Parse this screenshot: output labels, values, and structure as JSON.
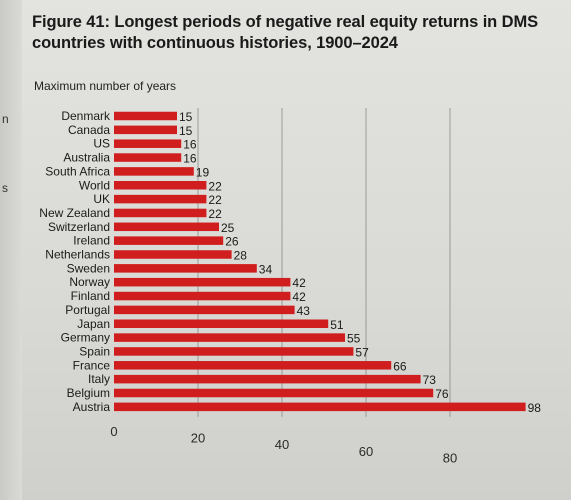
{
  "figure": {
    "title": "Figure 41: Longest periods of negative real equity returns in DMS countries with continuous histories, 1900–2024",
    "y_unit_label": "Maximum number of years",
    "margin_glyphs": [
      "n",
      "s"
    ]
  },
  "chart_data": {
    "type": "bar",
    "orientation": "horizontal",
    "title": "Figure 41: Longest periods of negative real equity returns in DMS countries with continuous histories, 1900–2024",
    "xlabel": "Maximum number of years",
    "ylabel": "",
    "categories": [
      "Denmark",
      "Canada",
      "US",
      "Australia",
      "South Africa",
      "World",
      "UK",
      "New Zealand",
      "Switzerland",
      "Ireland",
      "Netherlands",
      "Sweden",
      "Norway",
      "Finland",
      "Portugal",
      "Japan",
      "Germany",
      "Spain",
      "France",
      "Italy",
      "Belgium",
      "Austria"
    ],
    "values": [
      15,
      15,
      16,
      16,
      19,
      22,
      22,
      22,
      25,
      26,
      28,
      34,
      42,
      42,
      43,
      51,
      55,
      57,
      66,
      73,
      76,
      98
    ],
    "xlim": [
      0,
      100
    ],
    "xticks": [
      0,
      20,
      40,
      60,
      80
    ],
    "grid": "vertical",
    "bar_color": "#d01d1d"
  }
}
